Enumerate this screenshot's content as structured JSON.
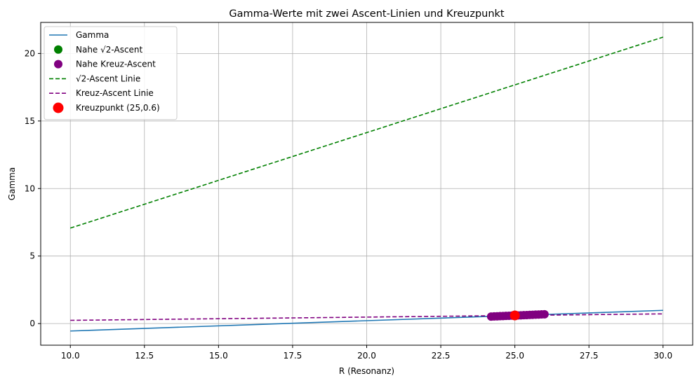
{
  "chart_data": {
    "type": "line",
    "title": "Gamma-Werte mit zwei Ascent-Linien und Kreuzpunkt",
    "xlabel": "R (Resonanz)",
    "ylabel": "Gamma",
    "xlim": [
      9.0,
      31.0
    ],
    "ylim": [
      -1.6,
      22.3
    ],
    "xticks": [
      10.0,
      12.5,
      15.0,
      17.5,
      20.0,
      22.5,
      25.0,
      27.5,
      30.0
    ],
    "xtick_labels": [
      "10.0",
      "12.5",
      "15.0",
      "17.5",
      "20.0",
      "22.5",
      "25.0",
      "27.5",
      "30.0"
    ],
    "yticks": [
      0,
      5,
      10,
      15,
      20
    ],
    "ytick_labels": [
      "0",
      "5",
      "10",
      "15",
      "20"
    ],
    "grid": true,
    "legend_position": "top-left",
    "series": [
      {
        "name": "Gamma",
        "kind": "line",
        "style": "solid",
        "color": "#1f77b4",
        "x": [
          10,
          30
        ],
        "y": [
          -0.55,
          0.98
        ]
      },
      {
        "name": "Nahe √2-Ascent",
        "kind": "scatter",
        "color": "#008000",
        "x": [],
        "y": []
      },
      {
        "name": "Nahe Kreuz-Ascent",
        "kind": "scatter",
        "color": "#800080",
        "x": [
          24.2,
          24.3,
          24.4,
          24.5,
          24.6,
          24.7,
          24.8,
          24.9,
          25.1,
          25.2,
          25.3,
          25.4,
          25.5,
          25.6,
          25.7,
          25.8,
          25.9,
          26.0
        ],
        "y": [
          0.52,
          0.53,
          0.54,
          0.55,
          0.56,
          0.57,
          0.58,
          0.59,
          0.6,
          0.61,
          0.62,
          0.63,
          0.64,
          0.65,
          0.66,
          0.67,
          0.68,
          0.69
        ]
      },
      {
        "name": "√2-Ascent Linie",
        "kind": "line",
        "style": "dashed",
        "color": "#008000",
        "x": [
          10,
          30
        ],
        "y": [
          7.07,
          21.21
        ]
      },
      {
        "name": "Kreuz-Ascent Linie",
        "kind": "line",
        "style": "dashed",
        "color": "#800080",
        "x": [
          10,
          30
        ],
        "y": [
          0.24,
          0.72
        ]
      },
      {
        "name": "Kreuzpunkt (25,0.6)",
        "kind": "scatter",
        "color": "#ff0000",
        "x": [
          25
        ],
        "y": [
          0.6
        ]
      }
    ]
  }
}
